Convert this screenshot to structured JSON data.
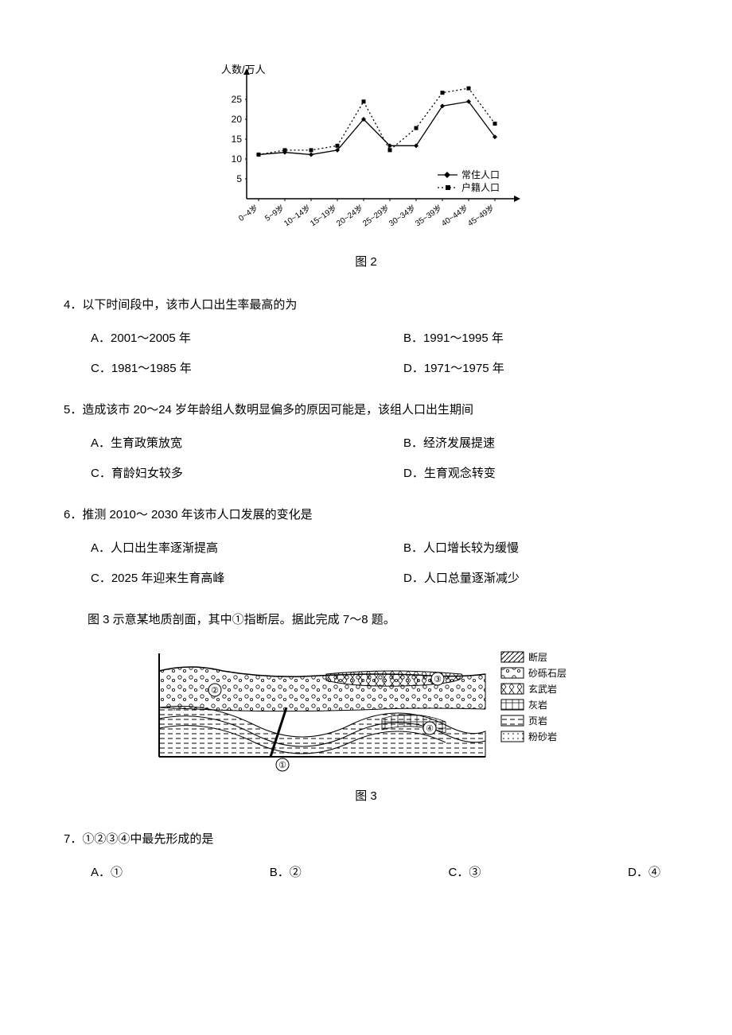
{
  "fig2": {
    "type": "line",
    "y_axis_label": "人数/万人",
    "y_ticks": [
      5,
      10,
      15,
      20,
      25
    ],
    "x_categories": [
      "0~4岁",
      "5~9岁",
      "10~14岁",
      "15~19岁",
      "20~24岁",
      "25~29岁",
      "30~34岁",
      "35~39岁",
      "40~44岁",
      "45~49岁"
    ],
    "series": [
      {
        "name": "常住人口",
        "marker": "diamond",
        "dash": "solid",
        "color": "#000000",
        "values": [
          10,
          10.5,
          10,
          11,
          18,
          12,
          12,
          21,
          22,
          14
        ]
      },
      {
        "name": "户籍人口",
        "marker": "square",
        "dash": "dotted",
        "color": "#000000",
        "values": [
          10,
          11,
          11,
          12,
          22,
          11,
          16,
          24,
          25,
          17
        ]
      }
    ],
    "ylim": [
      0,
      27
    ],
    "axis_color": "#000000",
    "background": "#ffffff",
    "font_size_axis": 11,
    "caption": "图 2"
  },
  "q4": {
    "number": "4．",
    "stem": "以下时间段中，该市人口出生率最高的为",
    "A": "A．2001～2005 年",
    "B": "B．1991～1995 年",
    "C": "C．1981～1985 年",
    "D": "D．1971～1975 年"
  },
  "q5": {
    "number": "5．",
    "stem": "造成该市 20～24 岁年龄组人数明显偏多的原因可能是，该组人口出生期间",
    "A": "A．生育政策放宽",
    "B": "B．经济发展提速",
    "C": "C．育龄妇女较多",
    "D": "D．生育观念转变"
  },
  "q6": {
    "number": "6．",
    "stem": "推测 2010～ 2030 年该市人口发展的变化是",
    "A": "A．人口出生率逐渐提高",
    "B": "B．人口增长较为缓慢",
    "C": "C．2025 年迎来生育高峰",
    "D": "D．人口总量逐渐减少"
  },
  "intro3": "图 3 示意某地质剖面，其中①指断层。据此完成 7～8 题。",
  "fig3": {
    "type": "diagram",
    "caption": "图 3",
    "legend": [
      {
        "label": "断层",
        "pattern": "diagonal"
      },
      {
        "label": "砂砾石层",
        "pattern": "pebble"
      },
      {
        "label": "玄武岩",
        "pattern": "basalt"
      },
      {
        "label": "灰岩",
        "pattern": "brick"
      },
      {
        "label": "页岩",
        "pattern": "dash"
      },
      {
        "label": "粉砂岩",
        "pattern": "dots"
      }
    ],
    "markers": [
      "①",
      "②",
      "③",
      "④"
    ],
    "colors": {
      "stroke": "#000000",
      "fill": "#ffffff"
    }
  },
  "q7": {
    "number": "7．",
    "stem": "①②③④中最先形成的是",
    "A": "A．①",
    "B": "B．②",
    "C": "C．③",
    "D": "D．④"
  }
}
